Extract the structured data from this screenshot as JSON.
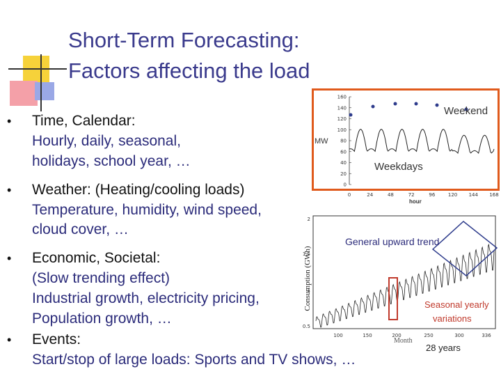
{
  "title": {
    "line1": "Short-Term Forecasting:",
    "line2": "Factors affecting the load"
  },
  "bullets": [
    {
      "head": "Time, Calendar:",
      "lines": [
        "Hourly, daily, seasonal,",
        "holidays, school year, …"
      ]
    },
    {
      "head": "Weather: (Heating/cooling loads)",
      "lines": [
        "Temperature, humidity, wind speed,",
        "cloud cover, …"
      ]
    },
    {
      "head": "Economic, Societal:",
      "lines": [
        "(Slow trending effect)",
        "Industrial growth, electricity pricing,",
        "Population growth, …"
      ]
    },
    {
      "head": "Events:",
      "lines": [
        "Start/stop of large loads: Sports and TV shows, …"
      ]
    }
  ],
  "weekly_chart": {
    "ylabel": "MW",
    "xlabel": "hour",
    "yticks": [
      "160",
      "140",
      "120",
      "100",
      "80",
      "60",
      "40",
      "20",
      "0"
    ],
    "xticks": [
      "0",
      "24",
      "48",
      "72",
      "96",
      "120",
      "144",
      "168"
    ],
    "weekend_label": "Weekend",
    "weekdays_label": "Weekdays",
    "border_color": "#e05a1c"
  },
  "trend_chart": {
    "ylabel": "Consumption (GWh)",
    "xlabel": "Month",
    "yticks": [
      "2",
      "1.5",
      "1",
      "0.5"
    ],
    "xticks": [
      "100",
      "150",
      "200",
      "250",
      "300",
      "336"
    ],
    "trend_label": "General upward trend",
    "seasonal_label_1": "Seasonal yearly",
    "seasonal_label_2": "variations",
    "years_label": "28 years",
    "seasonal_color": "#c0392b"
  }
}
